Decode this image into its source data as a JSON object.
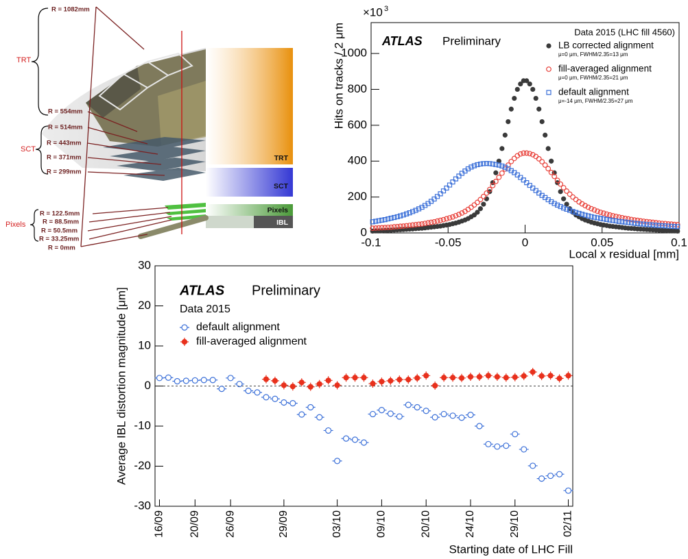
{
  "diagram": {
    "radii": [
      "R = 1082mm",
      "R = 554mm",
      "R = 514mm",
      "R = 443mm",
      "R = 371mm",
      "R = 299mm",
      "R = 122.5mm",
      "R = 88.5mm",
      "R = 50.5mm",
      "R = 33.25mm",
      "R = 0mm"
    ],
    "groups": [
      "TRT",
      "SCT",
      "Pixels"
    ],
    "bands": [
      "TRT",
      "SCT",
      "Pixels",
      "IBL"
    ]
  },
  "chart_data": [
    {
      "type": "scatter",
      "annotations": [
        "ATLAS",
        "Preliminary",
        "Data 2015 (LHC fill 4560)"
      ],
      "y_multiplier": {
        "base": "×10",
        "exponent": "3"
      },
      "x_label": "Local x residual [mm]",
      "y_label": "Hits on tracks / 2 μm",
      "xlim": [
        -0.1,
        0.1
      ],
      "xticks": [
        -0.1,
        -0.05,
        0,
        0.05,
        0.1
      ],
      "ylim": [
        0,
        1172
      ],
      "yticks": [
        0,
        200,
        400,
        600,
        800,
        1000
      ],
      "grid": false,
      "legend": "upper right",
      "x": [
        -0.099,
        -0.097,
        -0.095,
        -0.093,
        -0.091,
        -0.089,
        -0.087,
        -0.085,
        -0.083,
        -0.081,
        -0.079,
        -0.077,
        -0.075,
        -0.073,
        -0.071,
        -0.069,
        -0.067,
        -0.065,
        -0.063,
        -0.061,
        -0.059,
        -0.057,
        -0.055,
        -0.053,
        -0.051,
        -0.049,
        -0.047,
        -0.045,
        -0.043,
        -0.041,
        -0.039,
        -0.037,
        -0.035,
        -0.033,
        -0.031,
        -0.029,
        -0.027,
        -0.025,
        -0.023,
        -0.021,
        -0.019,
        -0.017,
        -0.015,
        -0.013,
        -0.011,
        -0.009,
        -0.007,
        -0.005,
        -0.003,
        -0.001,
        0.001,
        0.003,
        0.005,
        0.007,
        0.009,
        0.011,
        0.013,
        0.015,
        0.017,
        0.019,
        0.021,
        0.023,
        0.025,
        0.027,
        0.029,
        0.031,
        0.033,
        0.035,
        0.037,
        0.039,
        0.041,
        0.043,
        0.045,
        0.047,
        0.049,
        0.051,
        0.053,
        0.055,
        0.057,
        0.059,
        0.061,
        0.063,
        0.065,
        0.067,
        0.069,
        0.071,
        0.073,
        0.075,
        0.077,
        0.079,
        0.081,
        0.083,
        0.085,
        0.087,
        0.089,
        0.091,
        0.093,
        0.095,
        0.097,
        0.099
      ],
      "series": [
        {
          "name": "LB corrected alignment",
          "note": "μ=0 μm, FWHM/2.35=13 μm",
          "color": "#3a3a3a",
          "marker": "filled-circle",
          "values": [
            10,
            11,
            11,
            12,
            13,
            14,
            15,
            16,
            17,
            18,
            19,
            20,
            21,
            22,
            24,
            25,
            26,
            28,
            30,
            32,
            34,
            36,
            38,
            41,
            44,
            47,
            51,
            55,
            60,
            66,
            72,
            80,
            90,
            100,
            115,
            135,
            160,
            190,
            230,
            280,
            335,
            400,
            470,
            545,
            620,
            690,
            750,
            800,
            830,
            848,
            848,
            830,
            800,
            750,
            690,
            620,
            545,
            470,
            400,
            335,
            280,
            230,
            190,
            160,
            135,
            115,
            100,
            90,
            80,
            72,
            66,
            60,
            55,
            51,
            47,
            44,
            41,
            38,
            36,
            34,
            32,
            30,
            28,
            26,
            25,
            24,
            22,
            21,
            20,
            19,
            18,
            17,
            16,
            15,
            14,
            13,
            12,
            11,
            11,
            10
          ]
        },
        {
          "name": "fill-averaged alignment",
          "note": "μ=0 μm, FWHM/2.35=21 μm",
          "color": "#e8413a",
          "marker": "open-circle",
          "values": [
            26,
            27,
            28,
            29,
            30,
            31,
            32,
            34,
            35,
            37,
            38,
            40,
            42,
            44,
            46,
            48,
            50,
            53,
            56,
            59,
            62,
            66,
            70,
            74,
            79,
            84,
            89,
            96,
            103,
            111,
            120,
            131,
            143,
            156,
            170,
            186,
            203,
            222,
            242,
            264,
            287,
            310,
            333,
            356,
            378,
            398,
            415,
            430,
            440,
            445,
            445,
            442,
            436,
            426,
            413,
            397,
            378,
            358,
            337,
            315,
            293,
            272,
            252,
            233,
            216,
            200,
            186,
            173,
            162,
            152,
            143,
            135,
            128,
            121,
            115,
            110,
            105,
            100,
            96,
            92,
            88,
            85,
            81,
            78,
            75,
            72,
            70,
            67,
            65,
            63,
            61,
            59,
            57,
            55,
            53,
            52,
            50,
            49,
            47,
            46
          ]
        },
        {
          "name": "default alignment",
          "note": "μ=-14 μm, FWHM/2.35=27 μm",
          "color": "#3a6fd8",
          "marker": "open-square",
          "values": [
            62,
            65,
            68,
            71,
            74,
            78,
            82,
            86,
            90,
            95,
            100,
            106,
            112,
            119,
            126,
            134,
            143,
            153,
            164,
            176,
            189,
            203,
            218,
            234,
            250,
            267,
            284,
            301,
            317,
            332,
            345,
            357,
            367,
            374,
            380,
            384,
            386,
            387,
            386,
            384,
            381,
            378,
            373,
            366,
            357,
            347,
            336,
            323,
            309,
            295,
            280,
            265,
            250,
            236,
            222,
            209,
            197,
            185,
            174,
            164,
            155,
            147,
            139,
            132,
            126,
            120,
            114,
            109,
            104,
            99,
            95,
            91,
            87,
            84,
            81,
            78,
            75,
            72,
            69,
            67,
            64,
            62,
            60,
            58,
            56,
            54,
            52,
            50,
            49,
            47,
            46,
            44,
            43,
            41,
            40,
            39,
            38,
            37,
            36,
            35
          ]
        }
      ]
    },
    {
      "type": "dot",
      "annotations": [
        "ATLAS",
        "Preliminary",
        "Data 2015"
      ],
      "x_label": "Starting date of LHC Fill",
      "y_label": "Average IBL distortion magnitude [μm]",
      "ylim": [
        -30,
        30
      ],
      "yticks": [
        -30,
        -20,
        -10,
        0,
        10,
        20,
        30
      ],
      "hline": 0,
      "grid": false,
      "legend": "upper left",
      "categories": [
        "16/09",
        null,
        null,
        null,
        "20/09",
        null,
        null,
        null,
        "26/09",
        null,
        null,
        null,
        null,
        null,
        "29/09",
        null,
        null,
        null,
        null,
        null,
        "03/10",
        null,
        null,
        null,
        null,
        "09/10",
        null,
        null,
        null,
        null,
        "20/10",
        null,
        null,
        null,
        null,
        "24/10",
        null,
        null,
        null,
        null,
        "29/10",
        null,
        null,
        null,
        null,
        null,
        "02/11"
      ],
      "series": [
        {
          "name": "default alignment",
          "color": "#3a6fd8",
          "marker": "open-circle-bar",
          "values": [
            2.0,
            2.1,
            1.2,
            1.3,
            1.4,
            1.5,
            1.5,
            -0.7,
            2.0,
            0.5,
            -1.2,
            -1.6,
            -2.8,
            -3.2,
            -4.1,
            -4.3,
            -7.1,
            -5.3,
            -7.8,
            -11.1,
            -18.7,
            -13.1,
            -13.4,
            -14.1,
            -7.0,
            -6.0,
            -6.9,
            -7.6,
            -4.7,
            -5.3,
            -6.2,
            -7.8,
            -7.0,
            -7.4,
            -7.9,
            -7.2,
            -10.0,
            -14.5,
            -15.1,
            -14.9,
            -12.0,
            -15.8,
            -19.9,
            -23.1,
            -22.4,
            -22.0,
            -26.1
          ]
        },
        {
          "name": "fill-averaged alignment",
          "color": "#e8301c",
          "marker": "filled-circle-cross",
          "values": [
            null,
            null,
            null,
            null,
            null,
            null,
            null,
            null,
            null,
            null,
            null,
            null,
            1.7,
            1.3,
            0.2,
            -0.1,
            0.9,
            -0.2,
            0.5,
            1.4,
            0.2,
            2.1,
            2.1,
            2.1,
            0.6,
            1.1,
            1.3,
            1.6,
            1.6,
            2.0,
            2.6,
            0.1,
            2.1,
            2.1,
            2.0,
            2.3,
            2.3,
            2.6,
            2.3,
            2.1,
            2.2,
            2.5,
            3.5,
            2.5,
            2.6,
            1.9,
            2.6
          ]
        }
      ]
    }
  ]
}
